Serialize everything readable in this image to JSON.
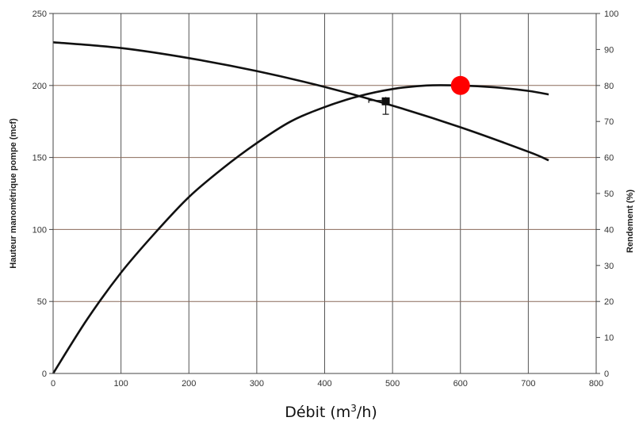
{
  "chart_data": {
    "type": "line",
    "title": "",
    "xlabel": "Débit (m³/h)",
    "xlabel_parts": {
      "pre": "Débit (m",
      "sup": "3",
      "post": "/h)"
    },
    "ylabel_left": "Hauteur manométrique pompe (mcf)",
    "ylabel_right": "Rendement (%)",
    "xlim": [
      0,
      800
    ],
    "ylim_left": [
      0,
      250
    ],
    "ylim_right": [
      0,
      100
    ],
    "x_ticks": [
      "0",
      "100",
      "200",
      "300",
      "400",
      "500",
      "600",
      "700",
      "800"
    ],
    "y_left_ticks": [
      "0",
      "50",
      "100",
      "150",
      "200",
      "250"
    ],
    "y_right_ticks": [
      "0",
      "10",
      "20",
      "30",
      "40",
      "50",
      "60",
      "70",
      "80",
      "90",
      "100"
    ],
    "grid": true,
    "series": [
      {
        "axis": "left",
        "x": [
          0,
          100,
          200,
          300,
          400,
          500,
          600,
          700,
          730
        ],
        "y": [
          230,
          226,
          219,
          210,
          199,
          186,
          171,
          154,
          148
        ]
      },
      {
        "axis": "right",
        "x": [
          0,
          50,
          100,
          150,
          200,
          250,
          300,
          350,
          400,
          450,
          500,
          550,
          600,
          650,
          700,
          730
        ],
        "y": [
          0,
          15,
          28,
          39,
          49,
          57,
          64,
          70,
          74,
          77,
          79,
          80,
          80,
          79.5,
          78.5,
          77.5
        ]
      }
    ],
    "operating_point": {
      "x": 490,
      "y": 189,
      "err_x_low": 465,
      "err_y_low": 180,
      "err_y_high": 192
    },
    "highlight_point": {
      "x": 600,
      "y": 80,
      "axis": "right",
      "color": "#ff0000"
    },
    "colors": {
      "curve": "#111111",
      "grid_major": "#555555",
      "grid_minor": "#8a6a5a",
      "highlight": "#ff0000"
    }
  }
}
